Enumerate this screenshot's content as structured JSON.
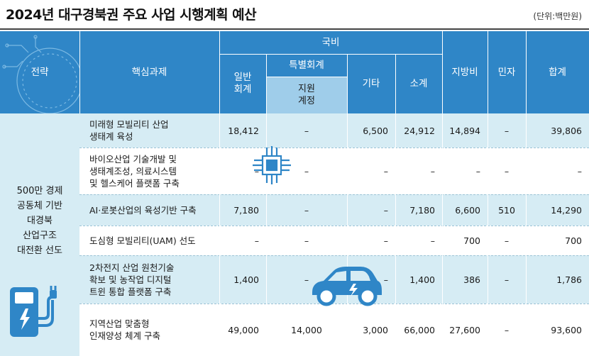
{
  "title": "2024년 대구경북권 주요 사업 시행계획 예산",
  "unit": "(단위:백만원)",
  "headers": {
    "strategy": "전략",
    "task": "핵심과제",
    "national": "국비",
    "general": "일반\n회계",
    "special": "특별회계",
    "support": "지원\n계정",
    "other": "기타",
    "subtotal": "소계",
    "local": "지방비",
    "private": "민자",
    "total": "합계"
  },
  "strategy_text": "500만 경제\n공동체 기반\n대경북\n산업구조\n대전환 선도",
  "rows": [
    {
      "task": "미래형 모빌리티 산업\n생태계 육성",
      "general": "18,412",
      "support": "–",
      "other": "6,500",
      "subtotal": "24,912",
      "local": "14,894",
      "private": "–",
      "total": "39,806"
    },
    {
      "task": "바이오산업 기술개발 및\n생태계조성, 의료시스템\n및 헬스케어 플랫폼 구축",
      "general": "–",
      "support": "–",
      "other": "–",
      "subtotal": "–",
      "local": "–",
      "private": "–",
      "total": "–"
    },
    {
      "task": "AI·로봇산업의 육성기반 구축",
      "general": "7,180",
      "support": "–",
      "other": "–",
      "subtotal": "7,180",
      "local": "6,600",
      "private": "510",
      "total": "14,290"
    },
    {
      "task": "도심형 모빌리티(UAM) 선도",
      "general": "–",
      "support": "–",
      "other": "–",
      "subtotal": "–",
      "local": "700",
      "private": "–",
      "total": "700"
    },
    {
      "task": "2차전지 산업 원천기술\n확보 및 농작업 디지털\n트윈 통합 플랫폼 구축",
      "general": "1,400",
      "support": "–",
      "other": "–",
      "subtotal": "1,400",
      "local": "386",
      "private": "–",
      "total": "1,786"
    },
    {
      "task": "지역산업 맞춤형\n인재양성 체계 구축",
      "general": "49,000",
      "support": "14,000",
      "other": "3,000",
      "subtotal": "66,000",
      "local": "27,600",
      "private": "–",
      "total": "93,600"
    }
  ],
  "colors": {
    "header": "#2f86c7",
    "subheader": "#9fcdea",
    "row_tint": "#d6ecf4"
  },
  "icons": [
    "chip-icon",
    "electric-car-icon",
    "charging-station-icon",
    "circuit-decoration-icon"
  ]
}
